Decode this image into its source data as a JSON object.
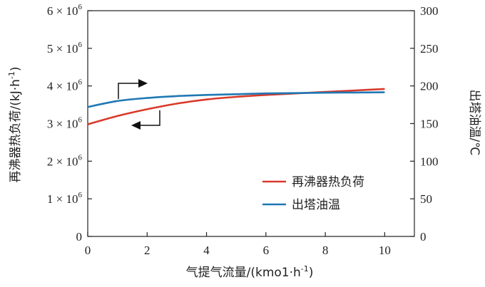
{
  "chart_data": {
    "type": "line",
    "x_axis": {
      "label": "气提气流量/(kmo1·h",
      "label_sup": "-1",
      "label_end": ")",
      "range": [
        0,
        11
      ],
      "ticks": [
        0,
        2,
        4,
        6,
        8,
        10
      ],
      "tick_labels": [
        "0",
        "2",
        "4",
        "6",
        "8",
        "10"
      ]
    },
    "y_left": {
      "label": "再沸器热负荷/(kJ·h",
      "label_sup": "-1",
      "label_end": ")",
      "range": [
        0,
        6000000
      ],
      "ticks": [
        0,
        1000000,
        2000000,
        3000000,
        4000000,
        5000000,
        6000000
      ],
      "tick_labels": [
        {
          "base": "0",
          "exp": ""
        },
        {
          "base": "1 × 10",
          "exp": "6"
        },
        {
          "base": "2 × 10",
          "exp": "6"
        },
        {
          "base": "3 × 10",
          "exp": "6"
        },
        {
          "base": "4 × 10",
          "exp": "6"
        },
        {
          "base": "5 × 10",
          "exp": "6"
        },
        {
          "base": "6 × 10",
          "exp": "6"
        }
      ]
    },
    "y_right": {
      "label": "出塔油温/℃",
      "range": [
        0,
        300
      ],
      "ticks": [
        0,
        50,
        100,
        150,
        200,
        250,
        300
      ],
      "tick_labels": [
        "0",
        "50",
        "100",
        "150",
        "200",
        "250",
        "300"
      ]
    },
    "series": [
      {
        "name": "再沸器热负荷",
        "axis": "left",
        "color": "#d93a2b",
        "x": [
          0,
          1,
          2,
          3,
          4,
          5,
          6,
          7,
          8,
          9,
          10
        ],
        "y": [
          2980000,
          3200000,
          3380000,
          3530000,
          3640000,
          3710000,
          3760000,
          3800000,
          3840000,
          3880000,
          3920000
        ]
      },
      {
        "name": "出塔油温",
        "axis": "right",
        "color": "#1f78b4",
        "x": [
          0,
          1,
          2,
          3,
          4,
          5,
          6,
          7,
          8,
          9,
          10
        ],
        "y": [
          172,
          180,
          184,
          186.5,
          188,
          189,
          190,
          190.5,
          191,
          191.3,
          191.5
        ]
      }
    ],
    "legend": {
      "position": "bottom-right"
    },
    "grid": false
  }
}
